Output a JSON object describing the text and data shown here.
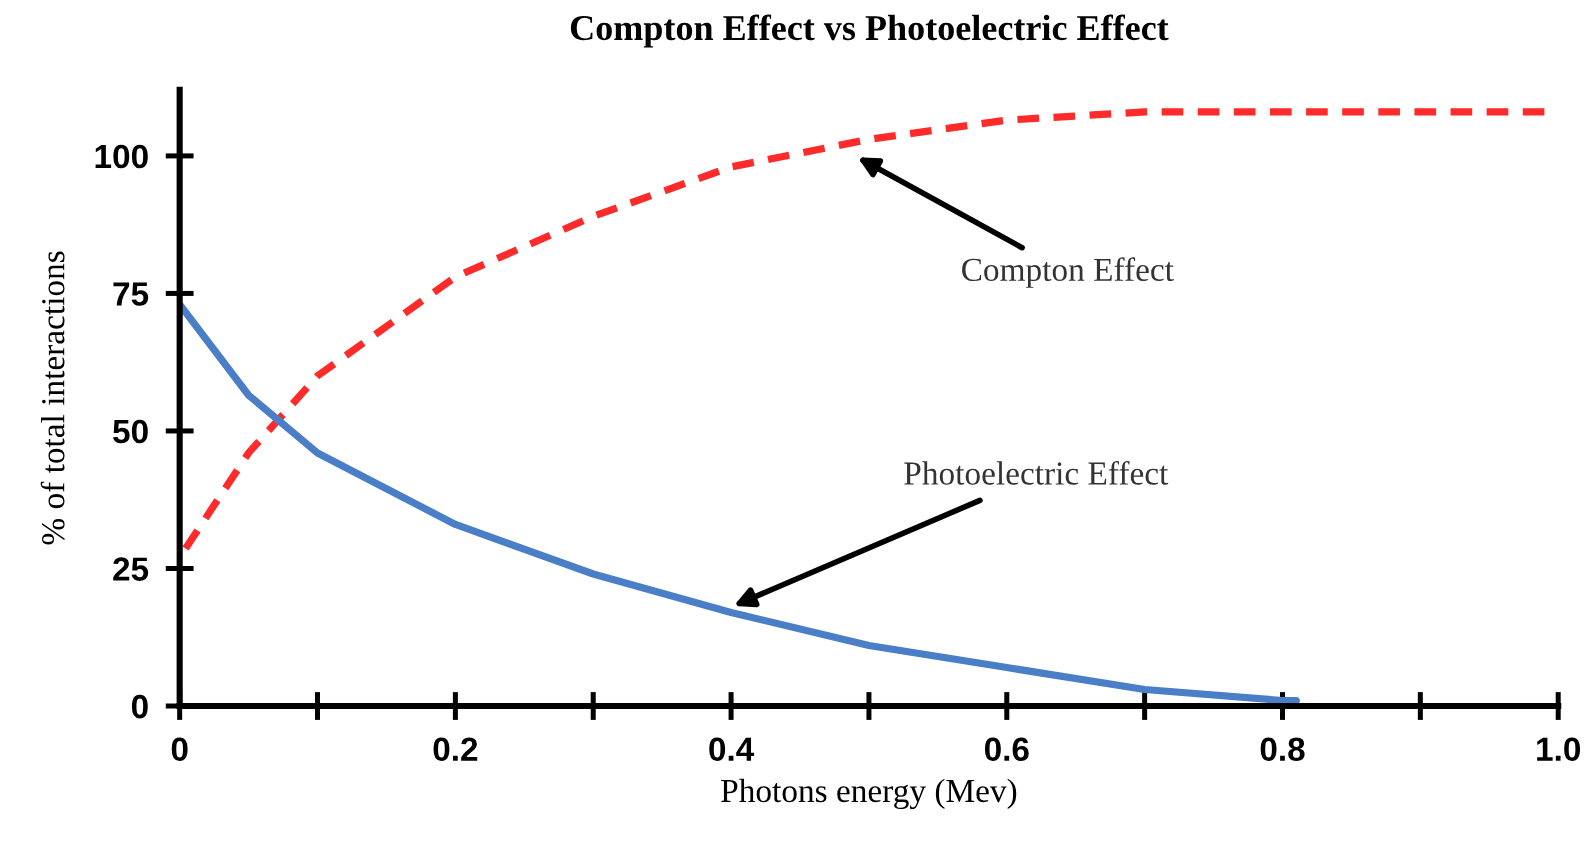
{
  "chart_data": {
    "type": "line",
    "title": "Compton Effect vs Photoelectric Effect",
    "xlabel": "Photons energy (Mev)",
    "ylabel": "% of total interactions",
    "xlim": [
      0,
      1.0
    ],
    "ylim": [
      0,
      112
    ],
    "xticks": [
      {
        "value": 0,
        "label": "0"
      },
      {
        "value": 0.1,
        "label": null
      },
      {
        "value": 0.2,
        "label": "0.2"
      },
      {
        "value": 0.3,
        "label": null
      },
      {
        "value": 0.4,
        "label": "0.4"
      },
      {
        "value": 0.5,
        "label": null
      },
      {
        "value": 0.6,
        "label": "0.6"
      },
      {
        "value": 0.7,
        "label": null
      },
      {
        "value": 0.8,
        "label": "0.8"
      },
      {
        "value": 0.9,
        "label": null
      },
      {
        "value": 1.0,
        "label": "1.0"
      }
    ],
    "yticks": [
      0,
      25,
      50,
      75,
      100
    ],
    "grid": false,
    "legend": false,
    "marker": "none",
    "series": [
      {
        "color": "#ff2a2a",
        "line_style": "dashed",
        "x": [
          0,
          0.05,
          0.1,
          0.2,
          0.3,
          0.4,
          0.5,
          0.6,
          0.7,
          0.8,
          0.9,
          0.99
        ],
        "values": [
          27,
          46,
          60,
          78,
          89,
          98,
          103,
          106.5,
          108,
          108,
          108,
          108
        ]
      },
      {
        "color": "#4a7fc8",
        "line_style": "solid",
        "x": [
          0,
          0.05,
          0.1,
          0.2,
          0.3,
          0.4,
          0.5,
          0.6,
          0.7,
          0.8,
          0.81
        ],
        "values": [
          73,
          56.5,
          46,
          33,
          24,
          17,
          11,
          7,
          3,
          1,
          1
        ]
      }
    ],
    "annotations": [
      {
        "text": "Compton Effect",
        "x": 0.49,
        "y": 100
      },
      {
        "text": "Photoelectric Effect",
        "x": 0.4,
        "y": 18
      }
    ]
  }
}
